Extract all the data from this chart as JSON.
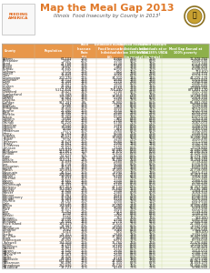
{
  "title": "Map the Meal Gap 2013",
  "subtitle": "Illinois  Food Insecurity by County in 2013¹",
  "counties": [
    "Adams",
    "Alexander",
    "Bond",
    "Boone",
    "Brown",
    "Bureau",
    "Calhoun",
    "Carroll",
    "Cass",
    "Champaign",
    "Christian",
    "Clark",
    "Clay",
    "Clinton",
    "Coles",
    "Cook",
    "Crawford",
    "Cumberland",
    "DeKalb",
    "DeWitt",
    "Douglas",
    "DuPage",
    "Edgar",
    "Edwards",
    "Effingham",
    "Fayette",
    "Ford",
    "Franklin",
    "Fulton",
    "Gallatin",
    "Greene",
    "Grundy",
    "Hamilton",
    "Hancock",
    "Hardin",
    "Henderson",
    "Henry",
    "Iroquois",
    "Jackson",
    "Jasper",
    "Jefferson",
    "Jersey",
    "Jo Daviess",
    "Johnson",
    "Kane",
    "Kankakee",
    "Kendall",
    "Knox",
    "Lake",
    "LaSalle",
    "Lawrence",
    "Lee",
    "Livingston",
    "Logan",
    "Macon",
    "Macoupin",
    "Madison",
    "Marion",
    "Marshall",
    "Mason",
    "Massac",
    "McDonough",
    "McHenry",
    "McLean",
    "Menard",
    "Mercer",
    "Monroe",
    "Montgomery",
    "Morgan",
    "Moultrie",
    "Ogle",
    "Peoria",
    "Perry",
    "Piatt",
    "Pike",
    "Pope",
    "Pulaski",
    "Putnam",
    "Randolph",
    "Richland",
    "Rock Island",
    "Saline",
    "Sangamon",
    "Schuyler",
    "Scott",
    "Shelby",
    "St. Clair",
    "Stark",
    "Stephenson",
    "Tazewell",
    "Union",
    "Vermilion",
    "Wabash",
    "Warren",
    "Washington",
    "Wayne",
    "White",
    "Whiteside",
    "Will",
    "Williamson",
    "Winnebago",
    "Woodford"
  ],
  "population_vals": [
    "67,103",
    "7,887",
    "17,768",
    "54,165",
    "6,937",
    "34,645",
    "5,131",
    "15,418",
    "13,642",
    "203,276",
    "33,711",
    "16,308",
    "13,831",
    "38,001",
    "51,978",
    "5,217,400",
    "19,427",
    "11,049",
    "105,160",
    "16,562",
    "19,769",
    "927,297",
    "18,394",
    "6,785",
    "34,410",
    "22,080",
    "13,940",
    "39,348",
    "37,069",
    "5,580",
    "13,871",
    "51,220",
    "8,533",
    "19,090",
    "4,044",
    "7,171",
    "51,264",
    "29,117",
    "60,271",
    "9,792",
    "38,679",
    "22,681",
    "22,629",
    "12,832",
    "524,839",
    "112,861",
    "120,523",
    "52,627",
    "710,721",
    "113,131",
    "16,899",
    "36,218",
    "39,127",
    "30,347",
    "110,694",
    "46,612",
    "268,685",
    "39,059",
    "12,633",
    "14,665",
    "15,360",
    "32,499",
    "307,404",
    "173,580",
    "12,520",
    "16,088",
    "34,361",
    "30,104",
    "35,069",
    "14,763",
    "53,735",
    "184,685",
    "22,371",
    "16,517",
    "16,262",
    "4,349",
    "6,125",
    "5,998",
    "33,100",
    "16,044",
    "146,419",
    "24,987",
    "199,279",
    "7,082",
    "5,310",
    "22,311",
    "266,600",
    "5,935",
    "47,252",
    "136,008",
    "17,768",
    "78,611",
    "11,901",
    "17,540",
    "14,716",
    "16,463",
    "14,426",
    "58,302",
    "671,952",
    "66,496",
    "292,696",
    "38,723"
  ],
  "fi_rate": [
    "13%",
    "25%",
    "12%",
    "12%",
    "13%",
    "14%",
    "12%",
    "13%",
    "15%",
    "17%",
    "14%",
    "14%",
    "14%",
    "10%",
    "17%",
    "14%",
    "14%",
    "14%",
    "14%",
    "14%",
    "12%",
    "8%",
    "15%",
    "14%",
    "11%",
    "16%",
    "12%",
    "17%",
    "15%",
    "18%",
    "16%",
    "11%",
    "16%",
    "14%",
    "20%",
    "15%",
    "12%",
    "14%",
    "20%",
    "13%",
    "16%",
    "13%",
    "12%",
    "19%",
    "11%",
    "17%",
    "9%",
    "16%",
    "9%",
    "13%",
    "17%",
    "14%",
    "13%",
    "14%",
    "16%",
    "15%",
    "11%",
    "16%",
    "14%",
    "16%",
    "19%",
    "16%",
    "9%",
    "13%",
    "12%",
    "15%",
    "13%",
    "16%",
    "15%",
    "13%",
    "13%",
    "14%",
    "18%",
    "11%",
    "18%",
    "22%",
    "26%",
    "12%",
    "14%",
    "14%",
    "12%",
    "20%",
    "13%",
    "15%",
    "13%",
    "12%",
    "12%",
    "14%",
    "10%",
    "12%",
    "13%",
    "17%",
    "18%",
    "15%",
    "15%",
    "16%",
    "19%",
    "14%",
    "11%",
    "17%",
    "15%",
    "11%"
  ],
  "fi_number": [
    "8,980",
    "1,990",
    "2,130",
    "6,580",
    "880",
    "4,930",
    "610",
    "1,990",
    "2,050",
    "34,310",
    "4,680",
    "2,270",
    "1,890",
    "3,720",
    "8,750",
    "716,490",
    "2,740",
    "1,510",
    "14,810",
    "2,290",
    "2,360",
    "73,900",
    "2,820",
    "940",
    "3,800",
    "3,550",
    "1,640",
    "6,680",
    "5,540",
    "990",
    "2,180",
    "5,790",
    "1,380",
    "2,710",
    "820",
    "1,060",
    "6,030",
    "4,030",
    "12,050",
    "1,290",
    "6,080",
    "2,990",
    "2,720",
    "2,440",
    "59,490",
    "18,870",
    "10,610",
    "8,430",
    "63,440",
    "14,700",
    "2,880",
    "5,030",
    "4,990",
    "4,340",
    "17,450",
    "6,990",
    "30,140",
    "6,200",
    "1,780",
    "2,330",
    "2,890",
    "5,180",
    "28,120",
    "22,640",
    "1,530",
    "2,380",
    "4,560",
    "4,810",
    "5,220",
    "1,900",
    "7,020",
    "26,280",
    "4,040",
    "1,800",
    "2,910",
    "950",
    "1,580",
    "730",
    "4,700",
    "2,270",
    "17,510",
    "4,960",
    "25,640",
    "1,060",
    "670",
    "2,680",
    "31,050",
    "810",
    "6,870",
    "16,760",
    "3,200",
    "13,160",
    "2,110",
    "2,690",
    "2,180",
    "2,640",
    "2,720",
    "8,160",
    "74,080",
    "11,310",
    "43,730",
    "4,160"
  ],
  "pct_185_county": [
    "79%",
    "89%",
    "78%",
    "72%",
    "77%",
    "78%",
    "75%",
    "79%",
    "82%",
    "74%",
    "78%",
    "79%",
    "80%",
    "72%",
    "77%",
    "72%",
    "82%",
    "79%",
    "68%",
    "80%",
    "78%",
    "65%",
    "81%",
    "80%",
    "74%",
    "82%",
    "78%",
    "83%",
    "79%",
    "83%",
    "82%",
    "71%",
    "83%",
    "80%",
    "87%",
    "81%",
    "76%",
    "81%",
    "80%",
    "79%",
    "81%",
    "78%",
    "77%",
    "86%",
    "68%",
    "80%",
    "68%",
    "82%",
    "67%",
    "76%",
    "84%",
    "80%",
    "77%",
    "79%",
    "78%",
    "79%",
    "72%",
    "81%",
    "79%",
    "82%",
    "87%",
    "80%",
    "67%",
    "72%",
    "77%",
    "80%",
    "76%",
    "81%",
    "80%",
    "78%",
    "77%",
    "74%",
    "85%",
    "78%",
    "83%",
    "88%",
    "91%",
    "76%",
    "80%",
    "82%",
    "73%",
    "85%",
    "74%",
    "81%",
    "80%",
    "78%",
    "74%",
    "79%",
    "72%",
    "76%",
    "80%",
    "80%",
    "85%",
    "81%",
    "81%",
    "83%",
    "86%",
    "79%",
    "70%",
    "82%",
    "75%",
    "73%"
  ],
  "pct_185_state": [
    "72%",
    "89%",
    "78%",
    "72%",
    "77%",
    "78%",
    "75%",
    "79%",
    "82%",
    "74%",
    "78%",
    "79%",
    "80%",
    "72%",
    "77%",
    "72%",
    "82%",
    "79%",
    "68%",
    "80%",
    "78%",
    "65%",
    "81%",
    "80%",
    "74%",
    "82%",
    "78%",
    "83%",
    "79%",
    "83%",
    "82%",
    "71%",
    "83%",
    "80%",
    "87%",
    "81%",
    "76%",
    "81%",
    "80%",
    "79%",
    "81%",
    "78%",
    "77%",
    "86%",
    "68%",
    "80%",
    "68%",
    "82%",
    "67%",
    "76%",
    "84%",
    "80%",
    "77%",
    "79%",
    "78%",
    "79%",
    "72%",
    "81%",
    "79%",
    "82%",
    "87%",
    "80%",
    "67%",
    "72%",
    "77%",
    "80%",
    "76%",
    "81%",
    "80%",
    "78%",
    "77%",
    "74%",
    "85%",
    "78%",
    "83%",
    "88%",
    "91%",
    "76%",
    "80%",
    "82%",
    "73%",
    "85%",
    "74%",
    "81%",
    "80%",
    "78%",
    "74%",
    "79%",
    "72%",
    "76%",
    "80%",
    "80%",
    "85%",
    "81%",
    "81%",
    "83%",
    "86%",
    "79%",
    "70%",
    "82%",
    "75%",
    "73%"
  ],
  "meal_gap": [
    "11,978,760",
    "2,890,590",
    "2,773,380",
    "8,368,080",
    "1,096,320",
    "6,308,550",
    "774,810",
    "2,593,770",
    "2,719,770",
    "43,225,170",
    "5,924,880",
    "2,950,830",
    "2,446,290",
    "4,465,680",
    "10,889,250",
    "877,897,170",
    "3,557,340",
    "1,952,430",
    "18,194,250",
    "2,919,150",
    "2,882,040",
    "85,882,050",
    "3,694,590",
    "1,237,590",
    "4,619,550",
    "4,547,850",
    "2,050,320",
    "8,604,600",
    "6,977,670",
    "1,262,430",
    "2,804,940",
    "7,067,070",
    "1,782,060",
    "3,468,270",
    "1,065,060",
    "1,352,340",
    "7,448,850",
    "5,202,270",
    "15,256,350",
    "1,655,490",
    "7,711,560",
    "3,757,230",
    "3,388,320",
    "3,179,880",
    "72,090,090",
    "24,090,870",
    "12,526,650",
    "10,779,330",
    "74,024,760",
    "18,259,650",
    "3,739,440",
    "6,370,890",
    "6,249,210",
    "5,451,240",
    "21,718,050",
    "8,815,410",
    "35,453,100",
    "7,916,100",
    "2,277,180",
    "2,988,690",
    "3,760,290",
    "6,530,940",
    "32,357,640",
    "27,195,360",
    "1,969,470",
    "3,059,340",
    "5,628,240",
    "6,136,770",
    "6,626,940",
    "2,413,650",
    "8,817,180",
    "32,506,680",
    "5,269,560",
    "2,212,200",
    "3,749,490",
    "1,244,250",
    "2,051,820",
    "916,890",
    "5,951,250",
    "2,905,830",
    "21,388,230",
    "6,347,040",
    "31,278,720",
    "1,364,580",
    "848,430",
    "3,392,040",
    "38,447,550",
    "1,001,970",
    "8,733,030",
    "20,476,680",
    "4,150,080",
    "16,718,520",
    "2,726,910",
    "3,410,070",
    "2,780,700",
    "3,388,320",
    "3,520,080",
    "10,371,240",
    "88,061,520",
    "14,559,270",
    "54,456,090",
    "5,086,560"
  ],
  "page_bg": "#FFFFFF",
  "header_orange": "#E8974A",
  "header_green": "#8DB04A",
  "title_color": "#E07828",
  "subtitle_color": "#555555",
  "logo_outer_color": "#8B7020",
  "logo_inner_color": "#C8A030",
  "fa_text_color": "#E06010",
  "row_odd_left": "#FDF4EA",
  "row_even_left": "#FFFFFF",
  "row_odd_right": "#EEF3DC",
  "row_even_right": "#F5F8EC",
  "col_divider": "#D0C0A8",
  "col_divider_right": "#C8D8A0"
}
